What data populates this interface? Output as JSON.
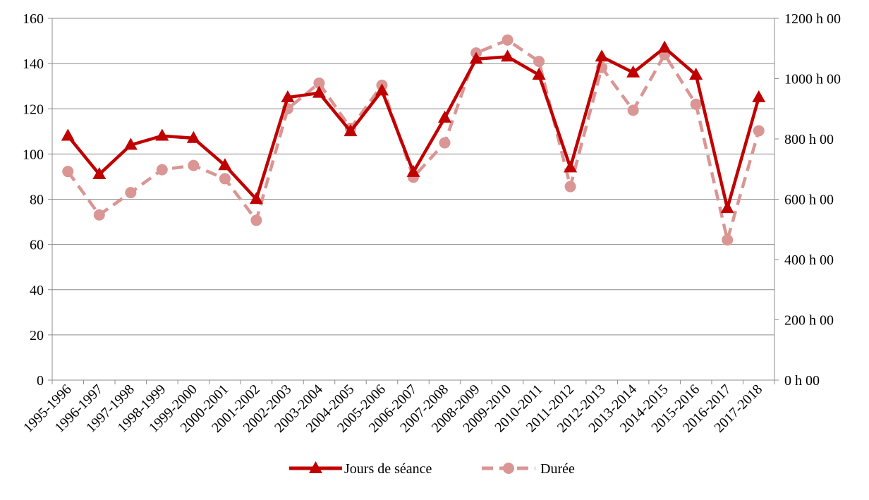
{
  "chart_data": {
    "type": "line",
    "title": "",
    "xlabel": "",
    "ylabel": "",
    "categories": [
      "1995-1996",
      "1996-1997",
      "1997-1998",
      "1998-1999",
      "1999-2000",
      "2000-2001",
      "2001-2002",
      "2002-2003",
      "2003-2004",
      "2004-2005",
      "2005-2006",
      "2006-2007",
      "2007-2008",
      "2008-2009",
      "2009-2010",
      "2010-2011",
      "2011-2012",
      "2012-2013",
      "2013-2014",
      "2014-2015",
      "2015-2016",
      "2016-2017",
      "2017-2018"
    ],
    "ylim": [
      0,
      160
    ],
    "y_ticks": [
      0,
      20,
      40,
      60,
      80,
      100,
      120,
      140,
      160
    ],
    "y2lim": [
      0,
      1200
    ],
    "y2_ticks": [
      0,
      200,
      400,
      600,
      800,
      1000,
      1200
    ],
    "y2_tick_labels": [
      "0 h 00",
      "200 h 00",
      "400 h 00",
      "600 h 00",
      "800 h 00",
      "1000 h 00",
      "1200 h 00"
    ],
    "grid": true,
    "legend_position": "bottom",
    "series": [
      {
        "name": "Jours de séance",
        "axis": "left",
        "color": "#C00000",
        "style": "solid",
        "marker": "triangle",
        "values": [
          108,
          91,
          104,
          108,
          107,
          95,
          80,
          125,
          127,
          110,
          128,
          92,
          116,
          142,
          143,
          135,
          94,
          143,
          136,
          147,
          135,
          76,
          125
        ]
      },
      {
        "name": "Durée",
        "axis": "right",
        "color": "#D99694",
        "style": "dashed",
        "marker": "circle",
        "values": [
          692,
          548,
          622,
          698,
          712,
          668,
          530,
          900,
          985,
          835,
          978,
          673,
          787,
          1085,
          1128,
          1057,
          642,
          1037,
          895,
          1080,
          915,
          465,
          827
        ]
      }
    ]
  }
}
